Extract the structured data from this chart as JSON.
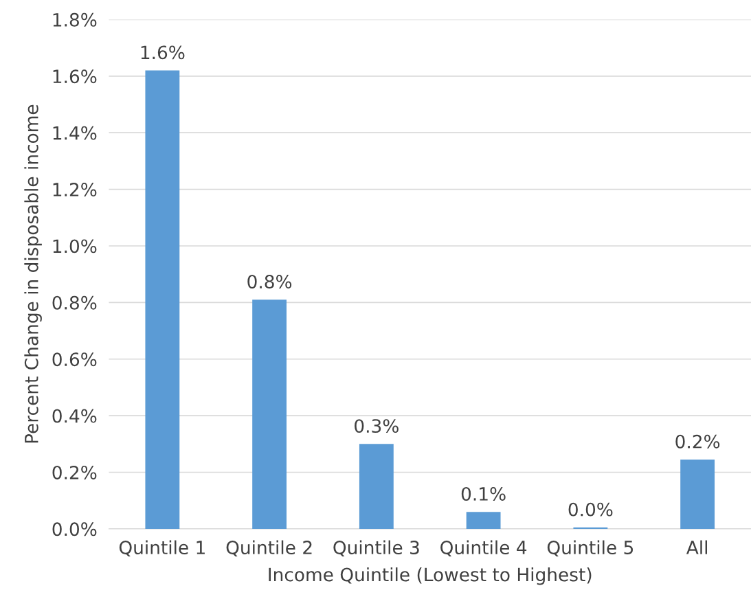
{
  "chart_data": {
    "type": "bar",
    "xlabel": "Income Quintile (Lowest to Highest)",
    "ylabel": "Percent Change in disposable income",
    "categories": [
      "Quintile 1",
      "Quintile 2",
      "Quintile 3",
      "Quintile 4",
      "Quintile 5",
      "All"
    ],
    "values": [
      1.62,
      0.81,
      0.3,
      0.06,
      0.005,
      0.245
    ],
    "value_labels": [
      "1.6%",
      "0.8%",
      "0.3%",
      "0.1%",
      "0.0%",
      "0.2%"
    ],
    "color": "#5b9bd5",
    "ylim": [
      0,
      1.8
    ],
    "yticks": [
      {
        "value": 0,
        "label": "0.0%"
      },
      {
        "value": 0.2,
        "label": "0.2%"
      },
      {
        "value": 0.4,
        "label": "0.4%"
      },
      {
        "value": 0.6,
        "label": "0.6%"
      },
      {
        "value": 0.8,
        "label": "0.8%"
      },
      {
        "value": 1.0,
        "label": "1.0%"
      },
      {
        "value": 1.2,
        "label": "1.2%"
      },
      {
        "value": 1.4,
        "label": "1.4%"
      },
      {
        "value": 1.6,
        "label": "1.6%"
      },
      {
        "value": 1.8,
        "label": "1.8%"
      }
    ],
    "grid": "y"
  }
}
